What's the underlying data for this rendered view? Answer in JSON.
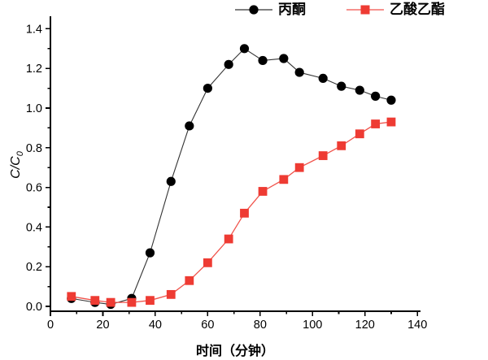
{
  "chart_data": {
    "type": "line",
    "title": "",
    "xlabel": "时间（分钟）",
    "ylabel": "C/C0",
    "ylabel_base": "C/C",
    "ylabel_sub": "0",
    "xlim": [
      0,
      140
    ],
    "ylim": [
      -0.03,
      1.46
    ],
    "grid": false,
    "legend_position": "top",
    "x_major_ticks": [
      0,
      20,
      40,
      60,
      80,
      100,
      120,
      140
    ],
    "x_tick_labels": [
      "0",
      "20",
      "40",
      "60",
      "80",
      "100",
      "120",
      "140"
    ],
    "x_minor_ticks": [
      10,
      30,
      50,
      70,
      90,
      110,
      130
    ],
    "y_major_ticks": [
      0.0,
      0.2,
      0.4,
      0.6,
      0.8,
      1.0,
      1.2,
      1.4
    ],
    "y_tick_labels": [
      "0.0",
      "0.2",
      "0.4",
      "0.6",
      "0.8",
      "1.0",
      "1.2",
      "1.4"
    ],
    "y_minor_ticks": [
      0.1,
      0.3,
      0.5,
      0.7,
      0.9,
      1.1,
      1.3
    ],
    "x": [
      8,
      17,
      23,
      31,
      38,
      46,
      53,
      60,
      68,
      74,
      81,
      89,
      95,
      104,
      111,
      118,
      124,
      130
    ],
    "series": [
      {
        "name": "丙酮",
        "marker": "circle",
        "color": "#000000",
        "line_color": "#333333",
        "values": [
          0.04,
          0.02,
          0.01,
          0.04,
          0.27,
          0.63,
          0.91,
          1.1,
          1.22,
          1.3,
          1.24,
          1.25,
          1.18,
          1.15,
          1.11,
          1.09,
          1.06,
          1.04
        ]
      },
      {
        "name": "乙酸乙酯",
        "marker": "square",
        "color": "#EE3B33",
        "line_color": "#F0524A",
        "values": [
          0.05,
          0.03,
          0.02,
          0.02,
          0.03,
          0.06,
          0.13,
          0.22,
          0.34,
          0.47,
          0.58,
          0.64,
          0.7,
          0.76,
          0.81,
          0.87,
          0.92,
          0.93
        ]
      }
    ],
    "axis_color": "#000000",
    "background_color": "#ffffff"
  }
}
